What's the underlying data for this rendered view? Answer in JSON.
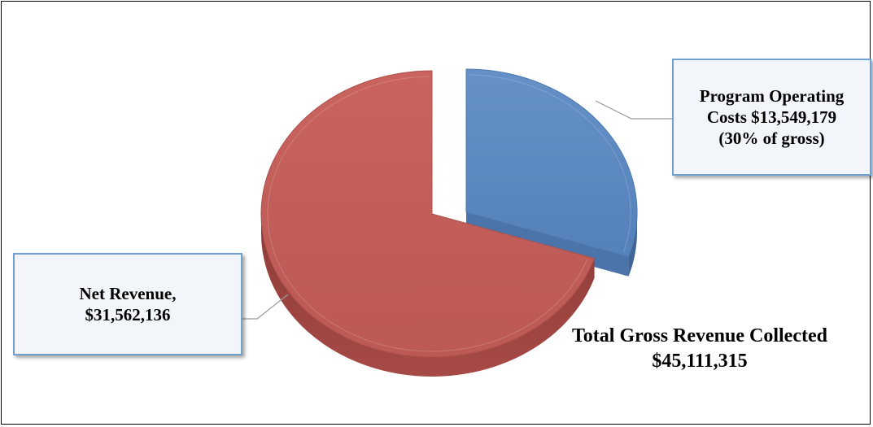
{
  "chart_data": {
    "type": "pie",
    "title": "",
    "slices": [
      {
        "name": "Program Operating Costs",
        "value": 13549179,
        "percent_of_gross": 30,
        "color": "#5a87c0",
        "exploded": true
      },
      {
        "name": "Net Revenue",
        "value": 31562136,
        "color": "#c0605c",
        "exploded": false
      }
    ],
    "total": {
      "label": "Total Gross Revenue Collected",
      "value_text": "$45,111,315",
      "value": 45111315
    }
  },
  "labels": {
    "opcost": "Program Operating\nCosts  $13,549,179\n(30% of gross)",
    "net": "Net Revenue,\n$31,562,136"
  }
}
